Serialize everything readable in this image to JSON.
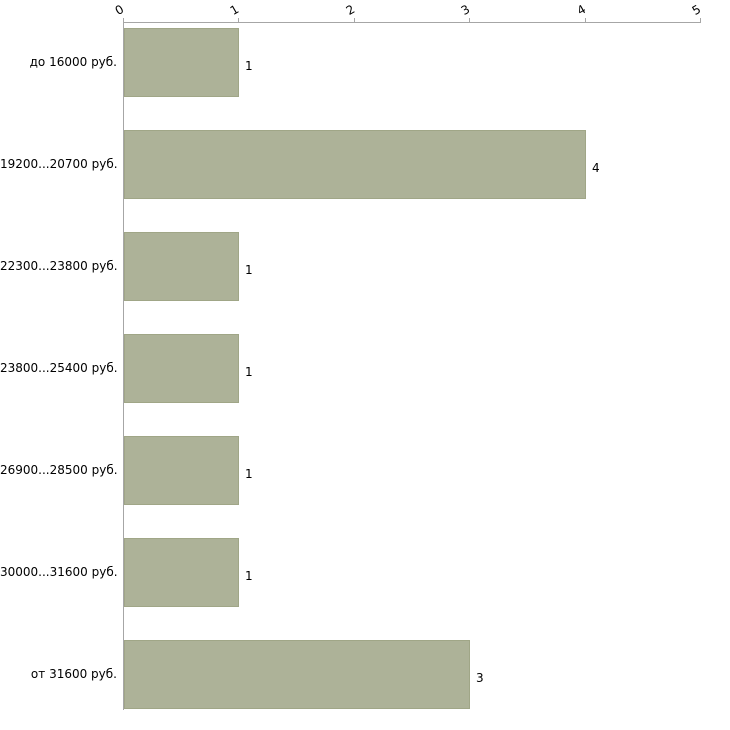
{
  "chart_data": {
    "type": "bar",
    "orientation": "horizontal",
    "title": "",
    "xlabel": "",
    "ylabel": "",
    "categories": [
      "до 16000 руб.",
      "19200...20700 руб.",
      "22300...23800 руб.",
      "23800...25400 руб.",
      "26900...28500 руб.",
      "30000...31600 руб.",
      "от 31600 руб."
    ],
    "values": [
      1,
      4,
      1,
      1,
      1,
      1,
      3
    ],
    "value_labels": [
      "1",
      "4",
      "1",
      "1",
      "1",
      "1",
      "3"
    ],
    "xlim": [
      0,
      5
    ],
    "x_ticks": [
      "0",
      "1",
      "2",
      "3",
      "4",
      "5"
    ],
    "grid": false,
    "legend": false,
    "bar_color": "#adb298",
    "bar_border_color": "#a0a687",
    "axis_color": "#a6a6a6"
  }
}
